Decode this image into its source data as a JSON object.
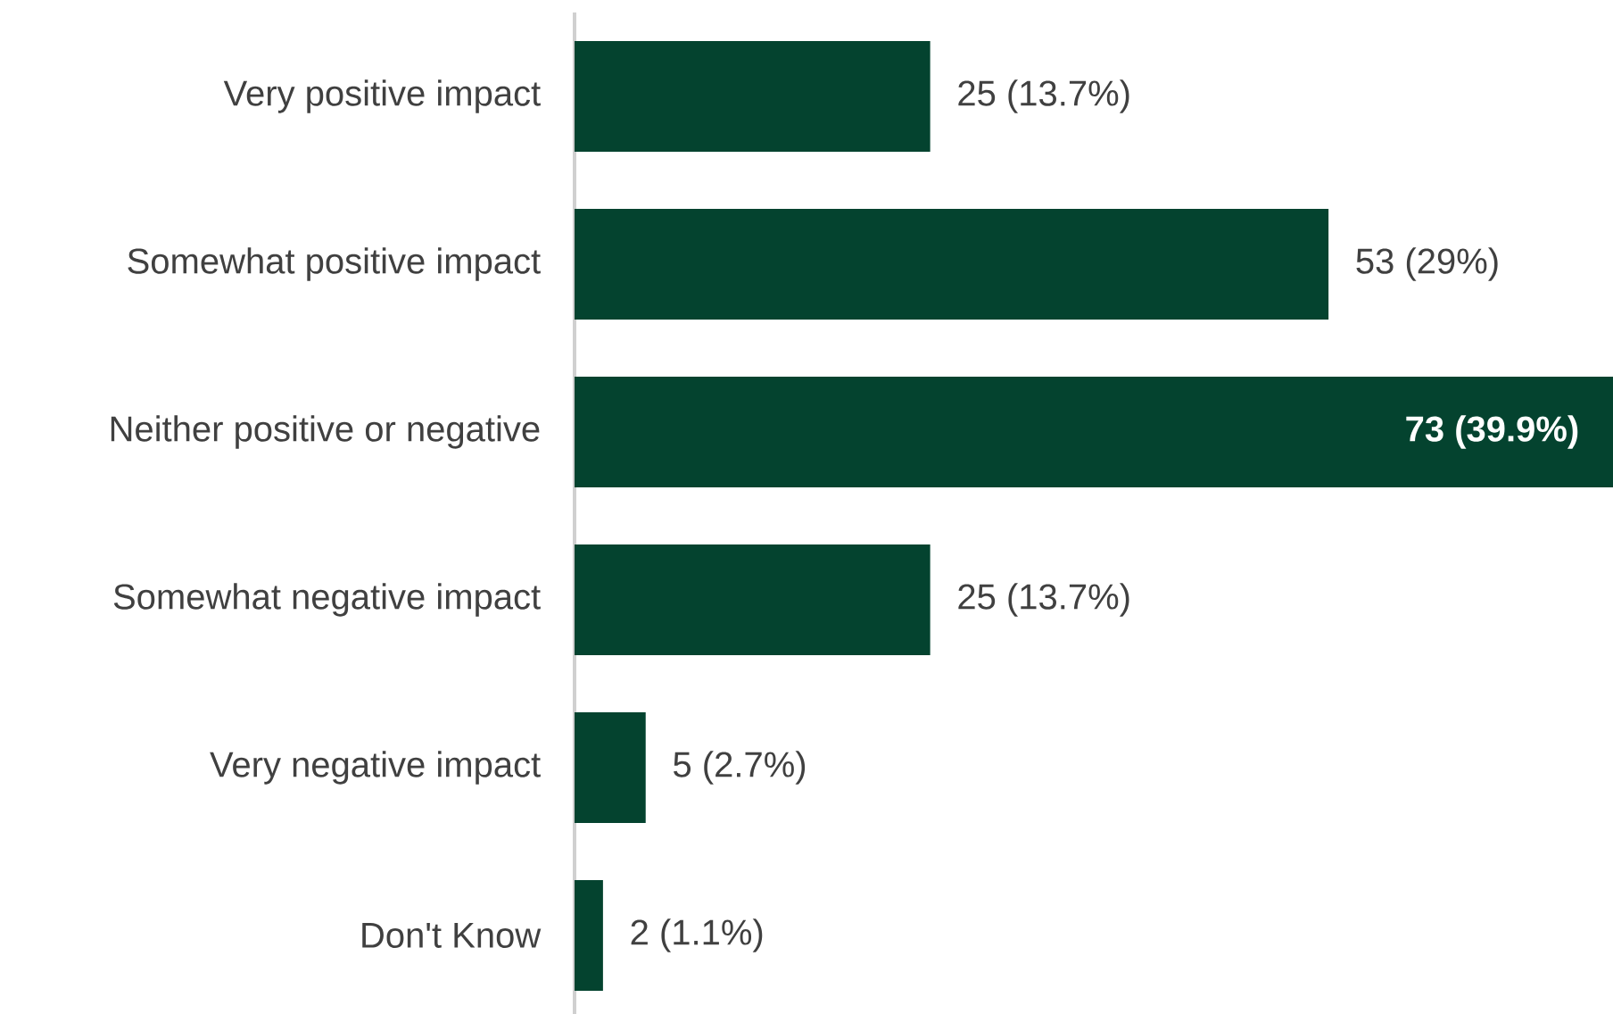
{
  "chart_data": {
    "type": "bar",
    "orientation": "horizontal",
    "categories": [
      "Very positive impact",
      "Somewhat positive impact",
      "Neither positive or negative",
      "Somewhat negative impact",
      "Very negative impact",
      "Don't Know"
    ],
    "values": [
      25,
      53,
      73,
      25,
      5,
      2
    ],
    "value_labels": [
      "25 (13.7%)",
      "53 (29%)",
      "73 (39.9%)",
      "25 (13.7%)",
      "5 (2.7%)",
      "2 (1.1%)"
    ],
    "color": "#04432f"
  }
}
